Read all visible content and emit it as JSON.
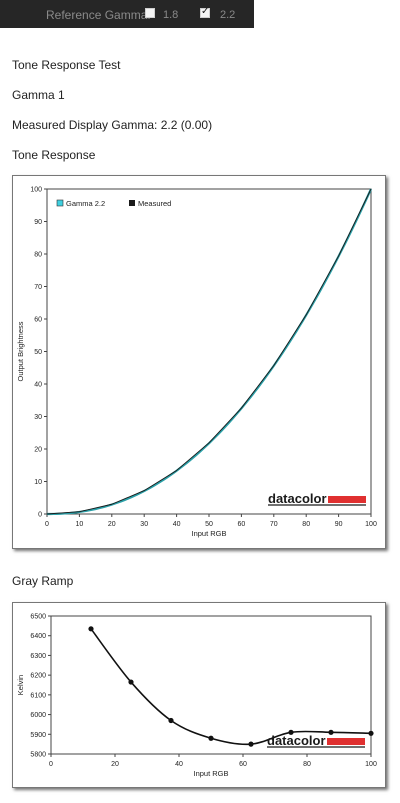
{
  "toolbar": {
    "label": "Reference Gamma:",
    "options": [
      {
        "label": "1.8",
        "checked": false
      },
      {
        "label": "2.2",
        "checked": true
      }
    ]
  },
  "report": {
    "title": "Tone Response Test",
    "profile": "Gamma 1",
    "measured": "Measured Display Gamma: 2.2 (0.00)",
    "tone_section": "Tone Response",
    "gray_section": "Gray Ramp"
  },
  "logo_text": "datacolor",
  "colors": {
    "gamma_line": "#2ba0a8",
    "measured_line": "#1a1a1a",
    "logo_bar": "#e03030",
    "gamma_legend": "#3fd0e0"
  },
  "chart_data": [
    {
      "type": "line",
      "xlabel": "Input RGB",
      "ylabel": "Output Brightness",
      "xlim": [
        0,
        100
      ],
      "ylim": [
        0,
        100
      ],
      "xticks": [
        0,
        10,
        20,
        30,
        40,
        50,
        60,
        70,
        80,
        90,
        100
      ],
      "yticks": [
        0,
        10,
        20,
        30,
        40,
        50,
        60,
        70,
        80,
        90,
        100
      ],
      "legend": "top-left",
      "series": [
        {
          "name": "Gamma 2.2",
          "gamma": 2.2,
          "x": [
            0,
            10,
            20,
            30,
            40,
            50,
            60,
            70,
            80,
            90,
            100
          ],
          "values": [
            0,
            0.6,
            2.9,
            7.1,
            13.3,
            21.8,
            32.5,
            45.6,
            61.2,
            79.3,
            100
          ]
        },
        {
          "name": "Measured",
          "x": [
            0,
            10,
            20,
            30,
            40,
            50,
            60,
            70,
            80,
            90,
            100
          ],
          "values": [
            0,
            0.7,
            3.0,
            7.2,
            13.4,
            21.9,
            32.6,
            45.7,
            61.3,
            79.4,
            100
          ]
        }
      ],
      "grid": false
    },
    {
      "type": "line",
      "xlabel": "Input RGB",
      "ylabel": "Kelvin",
      "xlim": [
        0,
        100
      ],
      "ylim": [
        5800,
        6500
      ],
      "xticks": [
        0,
        20,
        40,
        60,
        80,
        100
      ],
      "yticks": [
        5800,
        5900,
        6000,
        6100,
        6200,
        6300,
        6400,
        6500
      ],
      "series": [
        {
          "name": "",
          "x": [
            12.5,
            25,
            37.5,
            50,
            62.5,
            75,
            87.5,
            100
          ],
          "values": [
            6435,
            6165,
            5970,
            5880,
            5850,
            5910,
            5910,
            5905
          ]
        }
      ],
      "grid": false
    }
  ]
}
